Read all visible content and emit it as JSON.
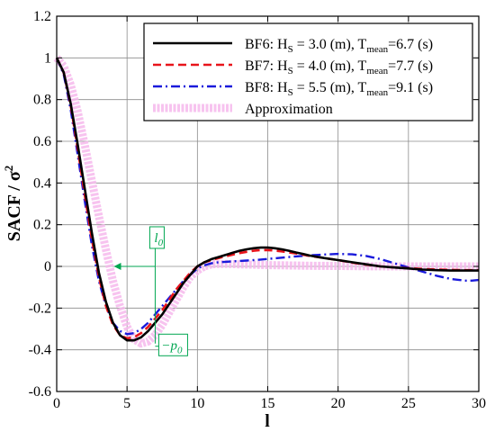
{
  "chart_data": {
    "type": "line",
    "xlabel": "l",
    "ylabel": "SACF / σ²",
    "xlim": [
      0,
      30
    ],
    "ylim": [
      -0.6,
      1.2
    ],
    "xticks": [
      "0",
      "5",
      "10",
      "15",
      "20",
      "25",
      "30"
    ],
    "yticks": [
      "1.2",
      "1",
      "0.8",
      "0.6",
      "0.4",
      "0.2",
      "0",
      "-0.2",
      "-0.4",
      "-0.6"
    ],
    "grid": true,
    "legend_position": "top-right",
    "series": [
      {
        "name": "BF6",
        "legend_parts": [
          "BF6: H",
          "S",
          " = 3.0 (m), T",
          "mean",
          "=6.7 (s)"
        ],
        "color": "#000000",
        "style": "solid",
        "x": [
          0,
          0.5,
          1,
          1.5,
          2,
          2.5,
          3,
          3.5,
          4,
          4.5,
          5,
          5.5,
          6,
          6.5,
          7,
          7.5,
          8,
          8.5,
          9,
          9.5,
          10,
          10.5,
          11,
          11.5,
          12,
          12.5,
          13,
          13.5,
          14,
          14.5,
          15,
          15.5,
          16,
          16.5,
          17,
          17.5,
          18,
          19,
          20,
          21,
          22,
          23,
          24,
          25,
          26,
          27,
          28,
          29,
          30
        ],
        "y": [
          1.0,
          0.93,
          0.78,
          0.58,
          0.37,
          0.16,
          -0.03,
          -0.17,
          -0.27,
          -0.33,
          -0.355,
          -0.355,
          -0.34,
          -0.31,
          -0.27,
          -0.23,
          -0.18,
          -0.13,
          -0.08,
          -0.04,
          0.0,
          0.02,
          0.035,
          0.045,
          0.055,
          0.065,
          0.075,
          0.082,
          0.087,
          0.09,
          0.09,
          0.087,
          0.082,
          0.075,
          0.067,
          0.06,
          0.052,
          0.04,
          0.03,
          0.02,
          0.01,
          0.0,
          -0.005,
          -0.01,
          -0.015,
          -0.018,
          -0.02,
          -0.02,
          -0.02
        ]
      },
      {
        "name": "BF7",
        "legend_parts": [
          "BF7: H",
          "S",
          " = 4.0 (m), T",
          "mean",
          "=7.7 (s)"
        ],
        "color": "#e8141b",
        "style": "dashed",
        "x": [
          0,
          0.5,
          1,
          1.5,
          2,
          2.5,
          3,
          3.5,
          4,
          4.5,
          5,
          5.5,
          6,
          6.5,
          7,
          7.5,
          8,
          8.5,
          9,
          9.5,
          10,
          10.5,
          11,
          11.5,
          12,
          12.5,
          13,
          13.5,
          14,
          14.5,
          15,
          15.5,
          16,
          16.5,
          17,
          17.5,
          18,
          19,
          20,
          21,
          22,
          23,
          24,
          25,
          26,
          27,
          28,
          29,
          30
        ],
        "y": [
          1.0,
          0.93,
          0.77,
          0.56,
          0.34,
          0.13,
          -0.05,
          -0.19,
          -0.28,
          -0.33,
          -0.345,
          -0.34,
          -0.32,
          -0.29,
          -0.25,
          -0.21,
          -0.16,
          -0.11,
          -0.07,
          -0.03,
          0.0,
          0.02,
          0.03,
          0.04,
          0.048,
          0.056,
          0.064,
          0.07,
          0.075,
          0.078,
          0.078,
          0.076,
          0.072,
          0.067,
          0.062,
          0.056,
          0.05,
          0.04,
          0.03,
          0.018,
          0.008,
          0.0,
          -0.005,
          -0.008,
          -0.012,
          -0.015,
          -0.017,
          -0.018,
          -0.018
        ]
      },
      {
        "name": "BF8",
        "legend_parts": [
          "BF8: H",
          "S",
          " = 5.5 (m), T",
          "mean",
          "=9.1 (s)"
        ],
        "color": "#1a1adb",
        "style": "dashdot",
        "x": [
          0,
          0.5,
          1,
          1.5,
          2,
          2.5,
          3,
          3.5,
          4,
          4.5,
          5,
          5.5,
          6,
          6.5,
          7,
          7.5,
          8,
          8.5,
          9,
          9.5,
          10,
          10.5,
          11,
          11.5,
          12,
          12.5,
          13,
          13.5,
          14,
          14.5,
          15,
          16,
          17,
          18,
          19,
          20,
          21,
          22,
          23,
          24,
          25,
          26,
          27,
          28,
          29,
          29.5,
          30
        ],
        "y": [
          1.0,
          0.92,
          0.75,
          0.53,
          0.31,
          0.1,
          -0.07,
          -0.19,
          -0.27,
          -0.31,
          -0.325,
          -0.32,
          -0.3,
          -0.27,
          -0.23,
          -0.19,
          -0.15,
          -0.11,
          -0.07,
          -0.04,
          -0.01,
          0.005,
          0.015,
          0.02,
          0.022,
          0.024,
          0.026,
          0.028,
          0.03,
          0.033,
          0.036,
          0.042,
          0.048,
          0.053,
          0.057,
          0.06,
          0.058,
          0.05,
          0.035,
          0.015,
          -0.005,
          -0.025,
          -0.045,
          -0.06,
          -0.068,
          -0.068,
          -0.065
        ]
      },
      {
        "name": "Approximation",
        "legend_parts": [
          "Approximation"
        ],
        "color": "#f6b8ec",
        "style": "thick",
        "x": [
          0,
          0.5,
          1,
          1.5,
          2,
          2.5,
          3,
          3.5,
          4,
          4.5,
          5,
          5.5,
          6,
          6.5,
          7,
          7.5,
          8,
          8.5,
          9,
          9.5,
          10,
          10.5,
          11,
          11.5,
          12,
          13,
          14,
          15,
          16,
          18,
          20,
          22,
          24,
          26,
          28,
          30
        ],
        "y": [
          1.0,
          0.96,
          0.87,
          0.74,
          0.58,
          0.41,
          0.24,
          0.08,
          -0.07,
          -0.19,
          -0.29,
          -0.35,
          -0.37,
          -0.36,
          -0.33,
          -0.28,
          -0.22,
          -0.16,
          -0.1,
          -0.05,
          -0.02,
          0.0,
          0.01,
          0.012,
          0.012,
          0.01,
          0.008,
          0.006,
          0.005,
          0.003,
          0.002,
          0.001,
          0.0,
          0.0,
          0.0,
          0.0
        ]
      }
    ],
    "annotations": {
      "l0_label": "l",
      "l0_sub": "0",
      "l0_x": 7,
      "l0_y": 0.0,
      "l0_arrow_from_x": 4.0,
      "p0_label": "−p",
      "p0_sub": "0",
      "p0_x": 7,
      "p0_y": -0.37,
      "color": "#00a651"
    }
  }
}
